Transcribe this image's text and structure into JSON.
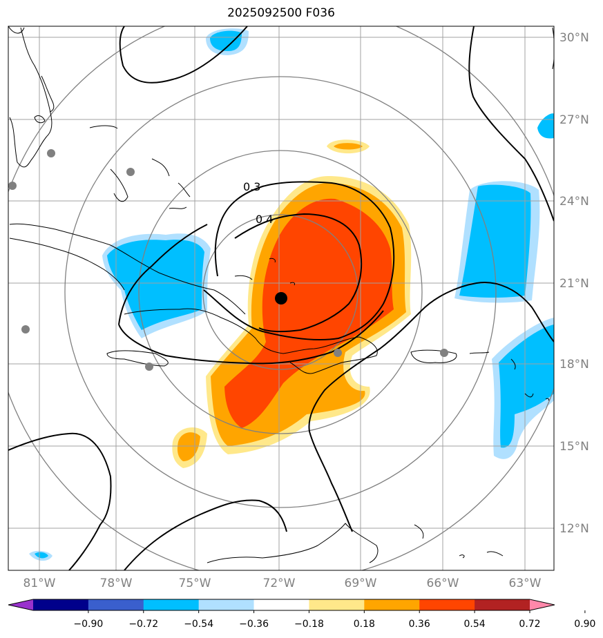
{
  "title": "2025092500 F036",
  "map": {
    "lat_labels": [
      "30°N",
      "27°N",
      "24°N",
      "21°N",
      "18°N",
      "15°N",
      "12°N"
    ],
    "lon_labels": [
      "81°W",
      "78°W",
      "75°W",
      "72°W",
      "69°W",
      "66°W",
      "63°W"
    ],
    "contour_labels": [
      "0.3",
      "0.4"
    ],
    "center_marker": {
      "lat": 20.3,
      "lon": -72.0
    },
    "colors": {
      "land_outline": "#000000",
      "grid": "#a0a0a0",
      "range_rings": "#808080",
      "station_dots": "#808080"
    }
  },
  "colorbar": {
    "tick_labels": [
      "−0.90",
      "−0.72",
      "−0.54",
      "−0.36",
      "−0.18",
      "0.18",
      "0.36",
      "0.54",
      "0.72",
      "0.90"
    ],
    "colors": [
      "#9932CC",
      "#00008B",
      "#3A5FCD",
      "#00BFFF",
      "#B0E0FF",
      "#FFFFFF",
      "#FFE88A",
      "#FFA500",
      "#FF4500",
      "#B22222",
      "#FF88AA"
    ]
  }
}
